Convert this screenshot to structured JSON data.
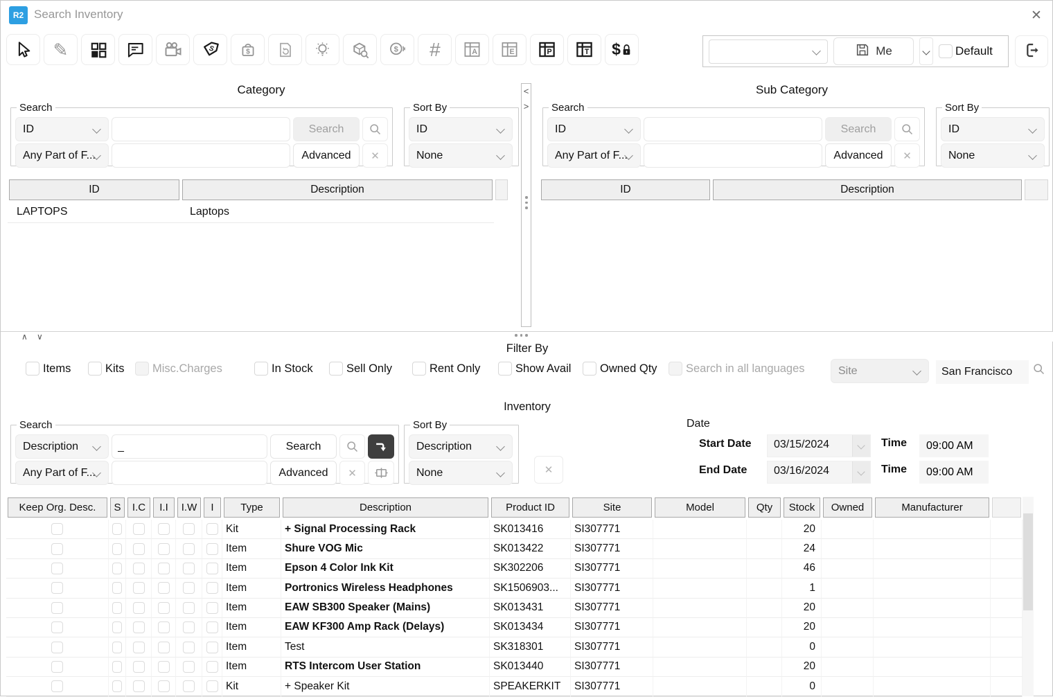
{
  "titlebar": {
    "logo": "R2",
    "title": "Search Inventory"
  },
  "colors": {
    "accent_blue": "#2D9FE2"
  },
  "toolbar": {
    "icons": [
      "pointer",
      "pencil",
      "grid",
      "comment",
      "video-camera",
      "price-tag",
      "money-bag",
      "document-history",
      "lightbulb",
      "package-search",
      "coins",
      "hash",
      "table-a",
      "table-e",
      "table-p",
      "table-t",
      "dollar-lock"
    ]
  },
  "saved_views": {
    "selected": "",
    "save_button": "Me",
    "default_label": "Default"
  },
  "category": {
    "title": "Category",
    "search": {
      "legend": "Search",
      "field": "ID",
      "match": "Any Part of F...",
      "value1": "",
      "value2": "",
      "search_button": "Search",
      "advanced_button": "Advanced"
    },
    "sort_by": {
      "legend": "Sort By",
      "primary": "ID",
      "secondary": "None"
    },
    "table": {
      "headers": [
        "ID",
        "Description"
      ],
      "rows": [
        [
          "LAPTOPS",
          "Laptops"
        ]
      ]
    }
  },
  "subcategory": {
    "title": "Sub Category",
    "search": {
      "legend": "Search",
      "field": "ID",
      "match": "Any Part of F...",
      "value1": "",
      "value2": "",
      "search_button": "Search",
      "advanced_button": "Advanced"
    },
    "sort_by": {
      "legend": "Sort By",
      "primary": "ID",
      "secondary": "None"
    },
    "table": {
      "headers": [
        "ID",
        "Description"
      ],
      "rows": []
    }
  },
  "filter": {
    "title": "Filter By",
    "checkboxes": [
      {
        "label": "Items",
        "checked": false,
        "disabled": false
      },
      {
        "label": "Kits",
        "checked": false,
        "disabled": false
      },
      {
        "label": "Misc.Charges",
        "checked": false,
        "disabled": true
      },
      {
        "label": "In Stock",
        "checked": false,
        "disabled": false
      },
      {
        "label": "Sell Only",
        "checked": false,
        "disabled": false
      },
      {
        "label": "Rent Only",
        "checked": false,
        "disabled": false
      },
      {
        "label": "Show Avail",
        "checked": false,
        "disabled": false
      },
      {
        "label": "Owned Qty",
        "checked": false,
        "disabled": false
      },
      {
        "label": "Search in all languages",
        "checked": false,
        "disabled": true
      }
    ],
    "site_label": "Site",
    "site_value": "San Francisco"
  },
  "inventory": {
    "title": "Inventory",
    "search": {
      "legend": "Search",
      "field": "Description",
      "match": "Any Part of F...",
      "value1": "_",
      "value2": "",
      "search_button": "Search",
      "advanced_button": "Advanced"
    },
    "sort_by": {
      "legend": "Sort By",
      "primary": "Description",
      "secondary": "None"
    },
    "date": {
      "label": "Date",
      "start_label": "Start Date",
      "start_value": "03/15/2024",
      "end_label": "End Date",
      "end_value": "03/16/2024",
      "time_label": "Time",
      "start_time": "09:00 AM",
      "end_time": "09:00 AM"
    }
  },
  "items_table": {
    "headers": [
      "Keep Org. Desc.",
      "S",
      "I.C",
      "I.I",
      "I.W",
      "I",
      "Type",
      "Description",
      "Product ID",
      "Site",
      "Model",
      "Qty",
      "Stock",
      "Owned",
      "Manufacturer"
    ],
    "rows": [
      {
        "type": "Kit",
        "description": "+ Signal Processing Rack",
        "bold": true,
        "product_id": "SK013416",
        "site": "SI307771",
        "model": "",
        "qty": "",
        "stock": "20",
        "owned": "",
        "manufacturer": ""
      },
      {
        "type": "Item",
        "description": "Shure VOG Mic",
        "bold": true,
        "product_id": "SK013422",
        "site": "SI307771",
        "model": "",
        "qty": "",
        "stock": "24",
        "owned": "",
        "manufacturer": ""
      },
      {
        "type": "Item",
        "description": "Epson 4 Color Ink Kit",
        "bold": true,
        "product_id": "SK302206",
        "site": "SI307771",
        "model": "",
        "qty": "",
        "stock": "46",
        "owned": "",
        "manufacturer": ""
      },
      {
        "type": "Item",
        "description": "Portronics Wireless Headphones",
        "bold": true,
        "product_id": "SK1506903...",
        "site": "SI307771",
        "model": "",
        "qty": "",
        "stock": "1",
        "owned": "",
        "manufacturer": ""
      },
      {
        "type": "Item",
        "description": "EAW SB300 Speaker (Mains)",
        "bold": true,
        "product_id": "SK013431",
        "site": "SI307771",
        "model": "",
        "qty": "",
        "stock": "20",
        "owned": "",
        "manufacturer": ""
      },
      {
        "type": "Item",
        "description": "EAW KF300 Amp Rack (Delays)",
        "bold": true,
        "product_id": "SK013434",
        "site": "SI307771",
        "model": "",
        "qty": "",
        "stock": "20",
        "owned": "",
        "manufacturer": ""
      },
      {
        "type": "Item",
        "description": "Test",
        "bold": false,
        "product_id": "SK318301",
        "site": "SI307771",
        "model": "",
        "qty": "",
        "stock": "0",
        "owned": "",
        "manufacturer": ""
      },
      {
        "type": "Item",
        "description": "RTS Intercom User Station",
        "bold": true,
        "product_id": "SK013440",
        "site": "SI307771",
        "model": "",
        "qty": "",
        "stock": "20",
        "owned": "",
        "manufacturer": ""
      },
      {
        "type": "Kit",
        "description": "+ Speaker Kit",
        "bold": false,
        "product_id": "SPEAKERKIT",
        "site": "SI307771",
        "model": "",
        "qty": "",
        "stock": "0",
        "owned": "",
        "manufacturer": ""
      }
    ]
  }
}
